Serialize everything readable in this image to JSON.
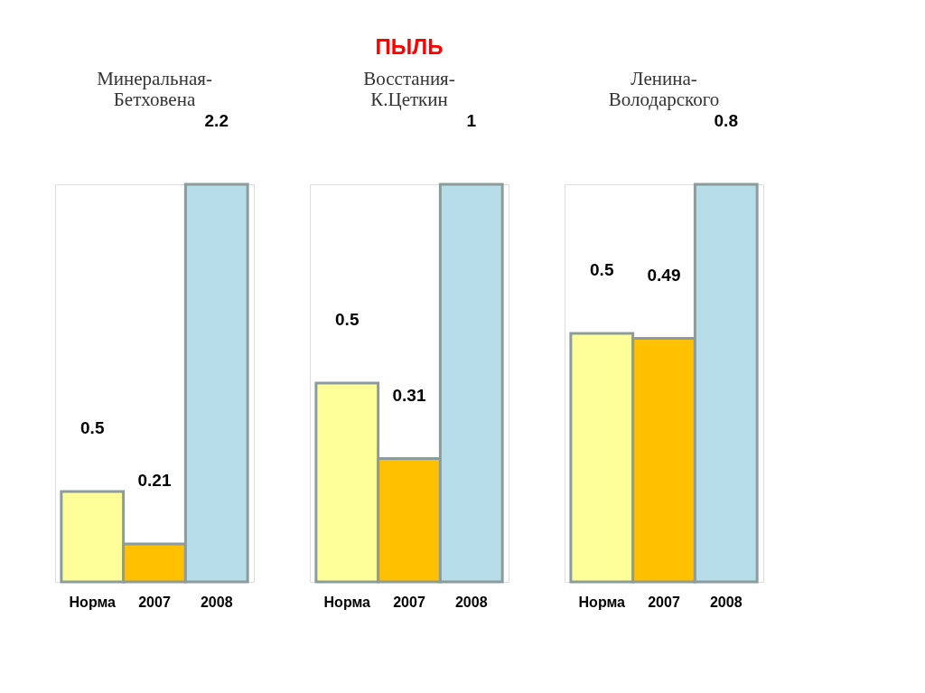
{
  "chart_data": [
    {
      "type": "bar",
      "subtitle": "Минеральная-Бетховена",
      "categories": [
        "Норма",
        "2007",
        "2008"
      ],
      "values": [
        0.5,
        0.21,
        2.2
      ],
      "colors": [
        "#ffff99",
        "#ffc000",
        "#b7dee8"
      ],
      "data_labels": true
    },
    {
      "type": "bar",
      "title": "ПЫЛЬ",
      "subtitle": "Восстания-К.Цеткин",
      "categories": [
        "Норма",
        "2007",
        "2008"
      ],
      "values": [
        0.5,
        0.31,
        1
      ],
      "colors": [
        "#ffff99",
        "#ffc000",
        "#b7dee8"
      ],
      "data_labels": true
    },
    {
      "type": "bar",
      "subtitle": "Ленина-Володарского",
      "categories": [
        "Норма",
        "2007",
        "2008"
      ],
      "values": [
        0.5,
        0.49,
        0.8
      ],
      "colors": [
        "#ffff99",
        "#ffc000",
        "#b7dee8"
      ],
      "data_labels": true
    }
  ]
}
